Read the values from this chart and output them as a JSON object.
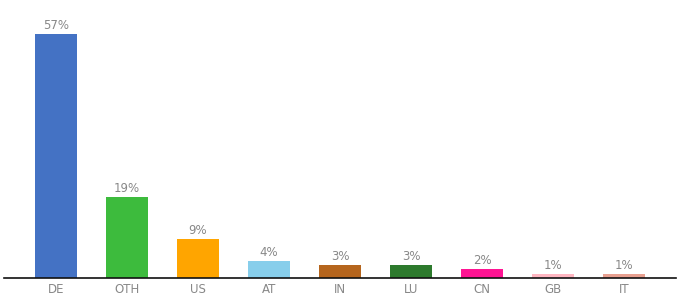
{
  "categories": [
    "DE",
    "OTH",
    "US",
    "AT",
    "IN",
    "LU",
    "CN",
    "GB",
    "IT"
  ],
  "values": [
    57,
    19,
    9,
    4,
    3,
    3,
    2,
    1,
    1
  ],
  "bar_colors": [
    "#4472c4",
    "#3dbb3d",
    "#ffa500",
    "#87ceeb",
    "#b5651d",
    "#2d7a2d",
    "#ff1493",
    "#ffb6c1",
    "#e8a090"
  ],
  "ylim": [
    0,
    64
  ],
  "background_color": "#ffffff",
  "label_fontsize": 8.5,
  "tick_fontsize": 8.5,
  "bar_width": 0.6,
  "label_color": "#888888",
  "tick_color": "#888888"
}
